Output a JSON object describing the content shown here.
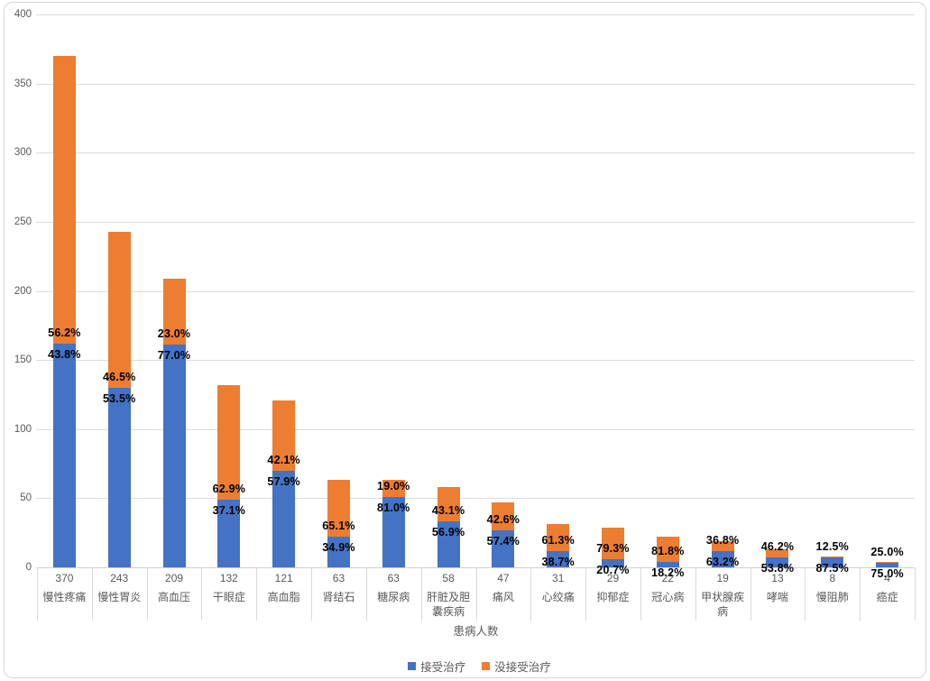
{
  "chart_data": {
    "type": "bar",
    "stacked": true,
    "title": "",
    "xlabel": "患病人数",
    "ylabel": "",
    "ylim": [
      0,
      400
    ],
    "y_ticks": [
      0,
      50,
      100,
      150,
      200,
      250,
      300,
      350,
      400
    ],
    "grid": true,
    "legend_position": "bottom",
    "categories": [
      "慢性疼痛",
      "慢性胃炎",
      "高血压",
      "干眼症",
      "高血脂",
      "肾结石",
      "糖尿病",
      "肝脏及胆囊疾病",
      "痛风",
      "心绞痛",
      "抑郁症",
      "冠心病",
      "甲状腺疾病",
      "哮喘",
      "慢阻肺",
      "癌症"
    ],
    "totals": [
      370,
      243,
      209,
      132,
      121,
      63,
      63,
      58,
      47,
      31,
      29,
      22,
      19,
      13,
      8,
      4
    ],
    "series": [
      {
        "name": "接受治疗",
        "color": "#4472C4",
        "pct": [
          43.8,
          53.5,
          77.0,
          37.1,
          57.9,
          34.9,
          81.0,
          56.9,
          57.4,
          38.7,
          20.7,
          18.2,
          63.2,
          53.8,
          87.5,
          75.0
        ]
      },
      {
        "name": "没接受治疗",
        "color": "#ED7D31",
        "pct": [
          56.2,
          46.5,
          23.0,
          62.9,
          42.1,
          65.1,
          19.0,
          43.1,
          42.6,
          61.3,
          79.3,
          81.8,
          36.8,
          46.2,
          12.5,
          25.0
        ]
      }
    ]
  }
}
